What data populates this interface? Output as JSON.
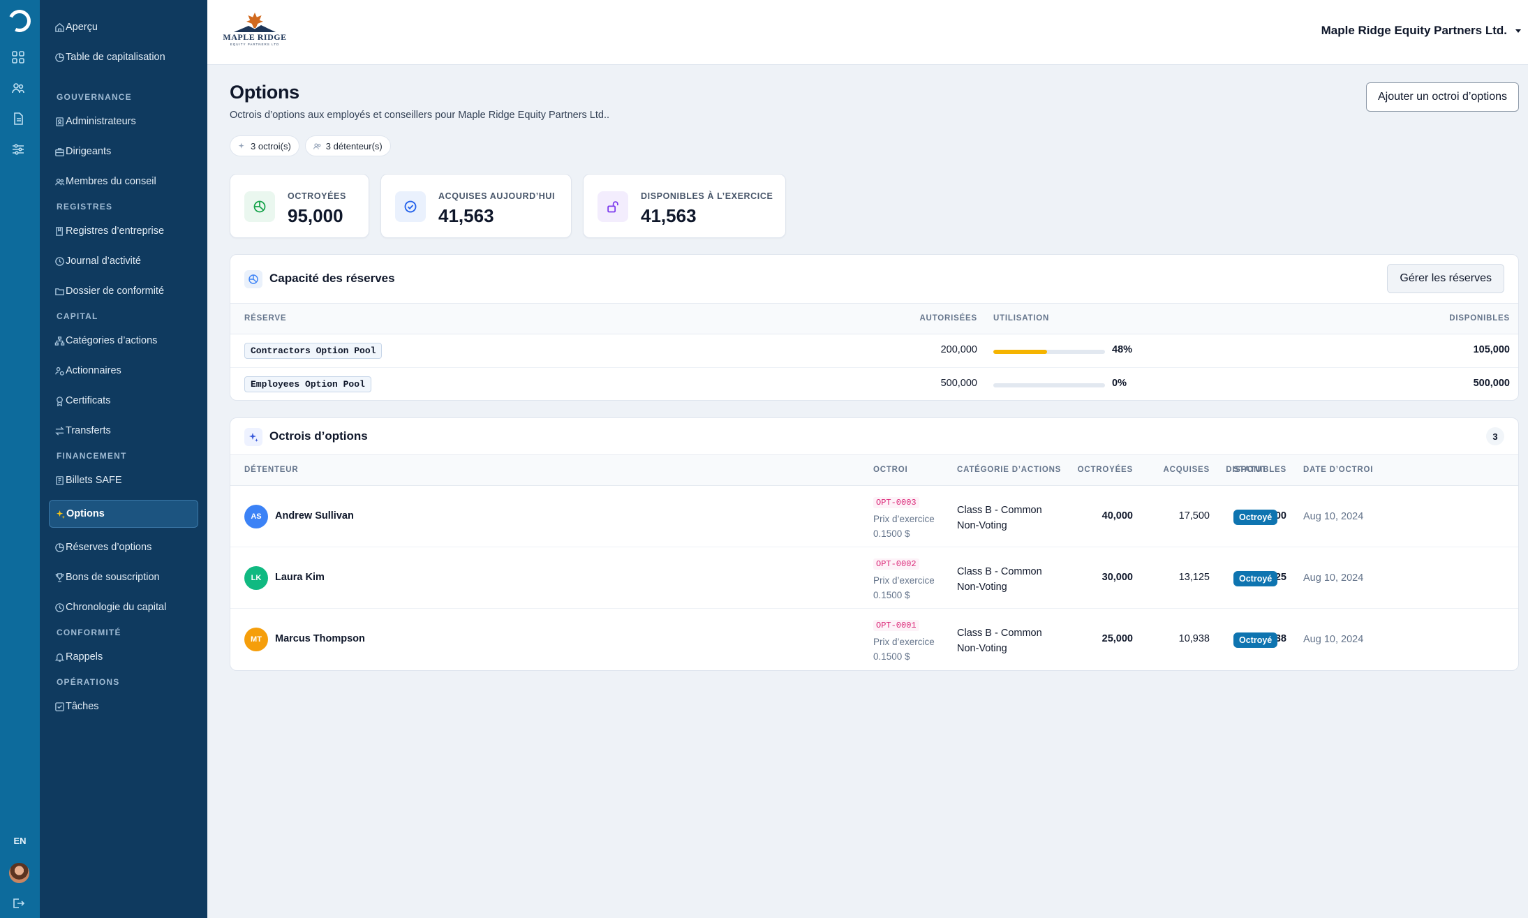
{
  "brand": {
    "name": "MAPLE RIDGE",
    "tagline": "EQUITY PARTNERS LTD"
  },
  "rail": {
    "lang": "EN"
  },
  "sidebar": {
    "top": [
      {
        "label": "Aperçu",
        "icon": "home-icon"
      },
      {
        "label": "Table de capitalisation",
        "icon": "pie-chart-icon"
      }
    ],
    "sections": [
      {
        "title": "GOUVERNANCE",
        "items": [
          {
            "label": "Administrateurs",
            "icon": "badge-icon"
          },
          {
            "label": "Dirigeants",
            "icon": "briefcase-icon"
          },
          {
            "label": "Membres du conseil",
            "icon": "users-icon"
          }
        ]
      },
      {
        "title": "REGISTRES",
        "items": [
          {
            "label": "Registres d’entreprise",
            "icon": "book-icon"
          },
          {
            "label": "Journal d’activité",
            "icon": "clock-icon"
          },
          {
            "label": "Dossier de conformité",
            "icon": "folder-icon"
          }
        ]
      },
      {
        "title": "CAPITAL",
        "items": [
          {
            "label": "Catégories d’actions",
            "icon": "hierarchy-icon"
          },
          {
            "label": "Actionnaires",
            "icon": "shareholders-icon"
          },
          {
            "label": "Certificats",
            "icon": "award-icon"
          },
          {
            "label": "Transferts",
            "icon": "transfer-icon"
          }
        ]
      },
      {
        "title": "FINANCEMENT",
        "items": [
          {
            "label": "Billets SAFE",
            "icon": "note-icon"
          },
          {
            "label": "Options",
            "icon": "sparkle-icon",
            "active": true
          },
          {
            "label": "Réserves d’options",
            "icon": "pie-chart-icon"
          },
          {
            "label": "Bons de souscription",
            "icon": "trophy-icon"
          },
          {
            "label": "Chronologie du capital",
            "icon": "clock-icon"
          }
        ]
      },
      {
        "title": "CONFORMITÉ",
        "items": [
          {
            "label": "Rappels",
            "icon": "bell-icon"
          }
        ]
      },
      {
        "title": "OPÉRATIONS",
        "items": [
          {
            "label": "Tâches",
            "icon": "check-square-icon"
          }
        ]
      }
    ]
  },
  "header": {
    "company": "Maple Ridge Equity Partners Ltd."
  },
  "page": {
    "title": "Options",
    "subtitle": "Octrois d’options aux employés et conseillers pour Maple Ridge Equity Partners Ltd..",
    "add_button": "Ajouter un octroi d’options",
    "chips": {
      "grants": "3 octroi(s)",
      "holders": "3 détenteur(s)"
    }
  },
  "stats": [
    {
      "label": "OCTROYÉES",
      "value": "95,000",
      "icon": "pie-chart-icon",
      "color": "#16a34a",
      "bg": "#eaf7ef"
    },
    {
      "label": "ACQUISES AUJOURD’HUI",
      "value": "41,563",
      "icon": "check-circle-icon",
      "color": "#2563eb",
      "bg": "#eaf1fd"
    },
    {
      "label": "DISPONIBLES À L’EXERCICE",
      "value": "41,563",
      "icon": "unlock-icon",
      "color": "#7c3aed",
      "bg": "#f3edfd"
    }
  ],
  "pools": {
    "title": "Capacité des réserves",
    "manage_button": "Gérer les réserves",
    "headers": {
      "pool": "RÉSERVE",
      "authorized": "AUTORISÉES",
      "usage": "UTILISATION",
      "available": "DISPONIBLES"
    },
    "rows": [
      {
        "name": "Contractors Option Pool",
        "authorized": "200,000",
        "usage_pct": 48,
        "usage_label": "48%",
        "available": "105,000"
      },
      {
        "name": "Employees Option Pool",
        "authorized": "500,000",
        "usage_pct": 0,
        "usage_label": "0%",
        "available": "500,000"
      }
    ]
  },
  "grants": {
    "title": "Octrois d’options",
    "count": "3",
    "headers": {
      "holder": "DÉTENTEUR",
      "grant": "OCTROI",
      "class": "CATÉGORIE D’ACTIONS",
      "granted": "OCTROYÉES",
      "vested": "ACQUISES",
      "available": "DISPONIBLES",
      "status": "STATUT",
      "date": "DATE D’OCTROI"
    },
    "rows": [
      {
        "initials": "AS",
        "avatar_color": "#3b82f6",
        "holder": "Andrew Sullivan",
        "code": "OPT-0003",
        "price_label": "Prix d’exercice",
        "price": "0.1500 $",
        "class_line1": "Class B - Common",
        "class_line2": "Non-Voting",
        "granted": "40,000",
        "vested": "17,500",
        "available": "17,500",
        "status": "Octroyé",
        "date": "Aug 10, 2024"
      },
      {
        "initials": "LK",
        "avatar_color": "#10b981",
        "holder": "Laura Kim",
        "code": "OPT-0002",
        "price_label": "Prix d’exercice",
        "price": "0.1500 $",
        "class_line1": "Class B - Common",
        "class_line2": "Non-Voting",
        "granted": "30,000",
        "vested": "13,125",
        "available": "13,125",
        "status": "Octroyé",
        "date": "Aug 10, 2024"
      },
      {
        "initials": "MT",
        "avatar_color": "#f59e0b",
        "holder": "Marcus Thompson",
        "code": "OPT-0001",
        "price_label": "Prix d’exercice",
        "price": "0.1500 $",
        "class_line1": "Class B - Common",
        "class_line2": "Non-Voting",
        "granted": "25,000",
        "vested": "10,938",
        "available": "10,938",
        "status": "Octroyé",
        "date": "Aug 10, 2024"
      }
    ]
  }
}
